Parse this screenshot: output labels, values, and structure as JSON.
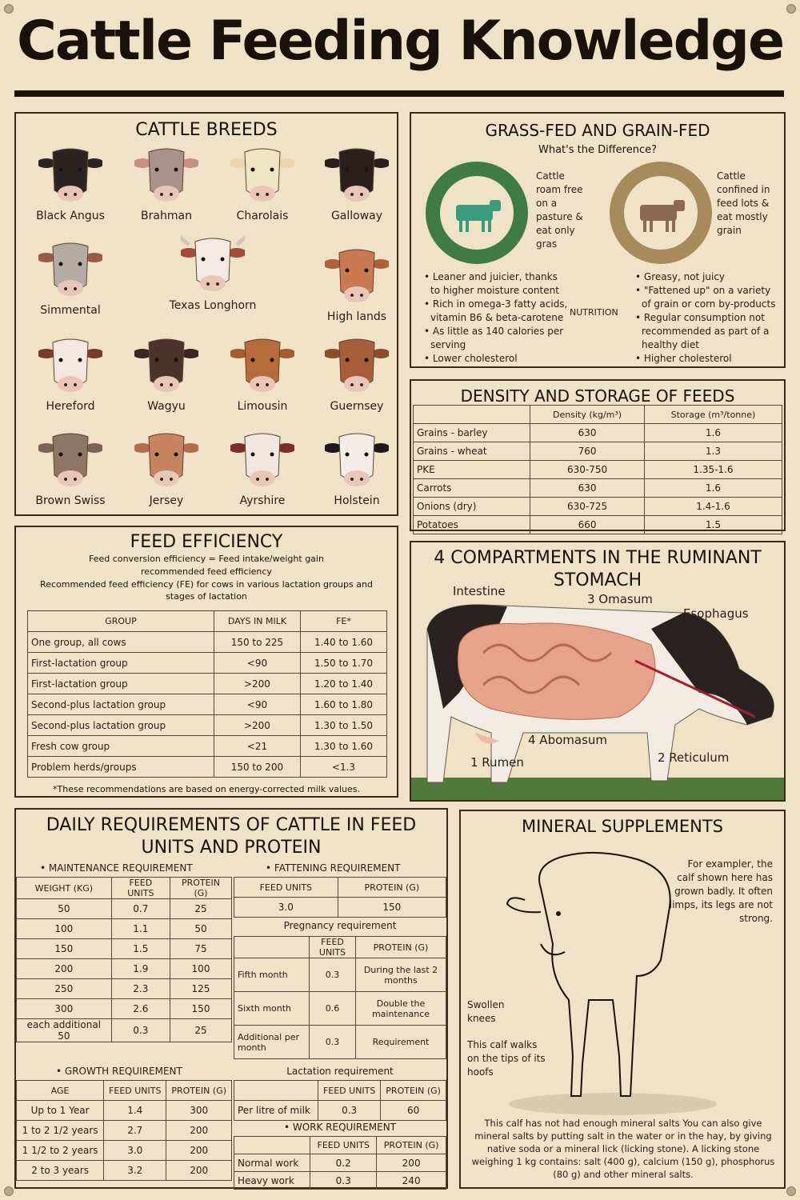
{
  "title": "Cattle Feeding Knowledge",
  "breeds": {
    "title": "CATTLE BREEDS",
    "items": [
      {
        "name": "Black Angus",
        "color": "#2b2421",
        "ear": "#2b2421"
      },
      {
        "name": "Brahman",
        "color": "#a8928a",
        "ear": "#c98e88"
      },
      {
        "name": "Charolais",
        "color": "#f0e5c3",
        "ear": "#e8d7ad"
      },
      {
        "name": "Galloway",
        "color": "#2a1f1c",
        "ear": "#2a1f1c"
      },
      {
        "name": "Simmental",
        "color": "#b5aba3",
        "ear": "#9a5a4a"
      },
      {
        "name": "Texas Longhorn",
        "color": "#f3ebe3",
        "ear": "#a34a3a"
      },
      {
        "name": "High lands",
        "color": "#c97a52",
        "ear": "#b0603e"
      },
      {
        "name": "Hereford",
        "color": "#f5e6df",
        "ear": "#7a3a2e"
      },
      {
        "name": "Wagyu",
        "color": "#4a342a",
        "ear": "#3a2720"
      },
      {
        "name": "Limousin",
        "color": "#b76a3a",
        "ear": "#a65a2f"
      },
      {
        "name": "Guernsey",
        "color": "#a85e3a",
        "ear": "#8e4c2f"
      },
      {
        "name": "Brown Swiss",
        "color": "#8e7567",
        "ear": "#7a6356"
      },
      {
        "name": "Jersey",
        "color": "#c88360",
        "ear": "#b27050"
      },
      {
        "name": "Ayrshire",
        "color": "#f1e6e0",
        "ear": "#7a2e2a"
      },
      {
        "name": "Holstein",
        "color": "#f3ece8",
        "ear": "#1f1a18"
      }
    ]
  },
  "grass": {
    "title": "GRASS-FED AND GRAIN-FED",
    "subtitle": "What's the Difference?",
    "left_caption": "Cattle roam free on a pasture & eat only gras",
    "right_caption": "Cattle confined in feed lots & eat mostly grain",
    "center_label": "NUTRITION",
    "left_bullets": [
      "• Leaner and juicier, thanks to higher moisture content",
      "• Rich in omega-3 fatty acids, vitamin B6 & beta-carotene",
      "• As little as 140 calories per serving",
      "• Lower cholesterol"
    ],
    "right_bullets": [
      "• Greasy, not juicy",
      "• \"Fattened up\" on a variety of grain or corn by-products",
      "• Regular consumption not recommended as part of a healthy diet",
      "• Higher cholesterol"
    ],
    "grass_color": "#3f7b46",
    "grain_color": "#a88b5c"
  },
  "density": {
    "title": "DENSITY AND STORAGE OF FEEDS",
    "headers": [
      "",
      "Density (kg/m³)",
      "Storage (m³/tonne)"
    ],
    "rows": [
      [
        "Grains - barley",
        "630",
        "1.6"
      ],
      [
        "Grains - wheat",
        "760",
        "1.3"
      ],
      [
        "PKE",
        "630-750",
        "1.35-1.6"
      ],
      [
        "Carrots",
        "630",
        "1.6"
      ],
      [
        "Onions (dry)",
        "630-725",
        "1.4-1.6"
      ],
      [
        "Potatoes",
        "660",
        "1.5"
      ]
    ]
  },
  "efficiency": {
    "title": "FEED EFFICIENCY",
    "line1": "Feed conversion efficiency = Feed intake/weight gain",
    "line2": "recommended feed efficiency",
    "line3": "Recommended feed efficiency (FE) for cows in various lactation groups and stages of lactation",
    "headers": [
      "GROUP",
      "DAYS IN MILK",
      "FE*"
    ],
    "rows": [
      [
        "One group, all cows",
        "150 to 225",
        "1.40 to 1.60"
      ],
      [
        "First-lactation group",
        "<90",
        "1.50 to 1.70"
      ],
      [
        "First-lactation group",
        ">200",
        "1.20 to 1.40"
      ],
      [
        "Second-plus lactation group",
        "<90",
        "1.60 to 1.80"
      ],
      [
        "Second-plus lactation group",
        ">200",
        "1.30 to 1.50"
      ],
      [
        "Fresh cow group",
        "<21",
        "1.30 to 1.60"
      ],
      [
        "Problem herds/groups",
        "150 to 200",
        "<1.3"
      ]
    ],
    "footnote": "*These recommendations are based on energy-corrected milk values."
  },
  "stomach": {
    "title": "4 COMPARTMENTS IN THE RUMINANT STOMACH",
    "labels": {
      "intestine": "Intestine",
      "omasum": "3 Omasum",
      "esophagus": "Esophagus",
      "abomasum": "4 Abomasum",
      "rumen": "1 Rumen",
      "reticulum": "2 Reticulum"
    }
  },
  "daily": {
    "title": "DAILY REQUIREMENTS OF CATTLE IN FEED UNITS AND PROTEIN",
    "maintenance_label": "• MAINTENANCE REQUIREMENT",
    "fattening_label": "• FATTENING REQUIREMENT",
    "maint_headers": [
      "WEIGHT (KG)",
      "FEED UNITS",
      "PROTEIN (G)"
    ],
    "maint_rows": [
      [
        "50",
        "0.7",
        "25"
      ],
      [
        "100",
        "1.1",
        "50"
      ],
      [
        "150",
        "1.5",
        "75"
      ],
      [
        "200",
        "1.9",
        "100"
      ],
      [
        "250",
        "2.3",
        "125"
      ],
      [
        "300",
        "2.6",
        "150"
      ],
      [
        "each additional 50",
        "0.3",
        "25"
      ]
    ],
    "fat_headers": [
      "FEED UNITS",
      "PROTEIN (G)"
    ],
    "fat_row": [
      "3.0",
      "150"
    ],
    "pregnancy_label": "Pregnancy requirement",
    "preg_headers": [
      "",
      "FEED UNITS",
      "PROTEIN (G)"
    ],
    "preg_rows": [
      [
        "Fifth month",
        "0.3",
        "During the last 2 months"
      ],
      [
        "Sixth month",
        "0.6",
        "Double the maintenance"
      ],
      [
        "Additional per month",
        "0.3",
        "Requirement"
      ]
    ],
    "growth_label": "• GROWTH REQUIREMENT",
    "growth_headers": [
      "AGE",
      "FEED UNITS",
      "PROTEIN (G)"
    ],
    "growth_rows": [
      [
        "Up to 1 Year",
        "1.4",
        "300"
      ],
      [
        "1 to 2 1/2 years",
        "2.7",
        "200"
      ],
      [
        "1 1/2 to 2 years",
        "3.0",
        "200"
      ],
      [
        "2 to 3 years",
        "3.2",
        "200"
      ]
    ],
    "lactation_label": "Lactation requirement",
    "lact_headers": [
      "",
      "FEED UNITS",
      "PROTEIN (G)"
    ],
    "lact_row": [
      "Per litre of milk",
      "0.3",
      "60"
    ],
    "work_label": "• WORK REQUIREMENT",
    "work_headers": [
      "",
      "FEED UNITS",
      "PROTEIN (G)"
    ],
    "work_rows": [
      [
        "Normal work",
        "0.2",
        "200"
      ],
      [
        "Heavy work",
        "0.3",
        "240"
      ]
    ]
  },
  "mineral": {
    "title": "MINERAL SUPPLEMENTS",
    "example": "For exampler, the calf shown here has grown badly. It often limps, its legs are not strong.",
    "knees": "Swollen knees",
    "walks": "This calf walks on the tips of its hoofs",
    "footer": "This calf has not had enough mineral salts You can also give mineral salts by putting salt in the water or in the hay, by giving native soda or a mineral lick (licking stone). A licking stone weighing 1 kg contains: salt (400 g), calcium (150 g), phosphorus (80 g) and other mineral salts."
  }
}
